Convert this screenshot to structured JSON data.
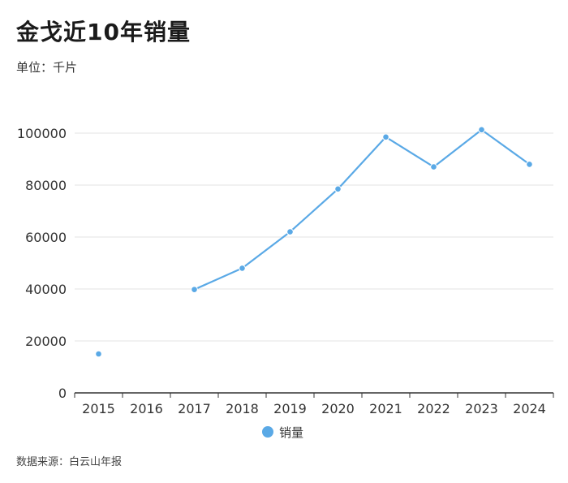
{
  "title": "金戈近10年销量",
  "unit_label": "单位：千片",
  "source_label": "数据来源：白云山年报",
  "colors": {
    "series": "#5aa9e6",
    "grid": "#e3e3e3",
    "axis": "#333333"
  },
  "chart_data": {
    "type": "line",
    "categories": [
      "2015",
      "2016",
      "2017",
      "2018",
      "2019",
      "2020",
      "2021",
      "2022",
      "2023",
      "2024"
    ],
    "series": [
      {
        "name": "销量",
        "values": [
          15000,
          null,
          39800,
          48000,
          62000,
          78500,
          98500,
          87000,
          101300,
          88000
        ]
      }
    ],
    "ylim": [
      0,
      100000
    ],
    "yticks": [
      0,
      20000,
      40000,
      60000,
      80000,
      100000
    ],
    "grid": true,
    "legend": "bottom-center"
  }
}
